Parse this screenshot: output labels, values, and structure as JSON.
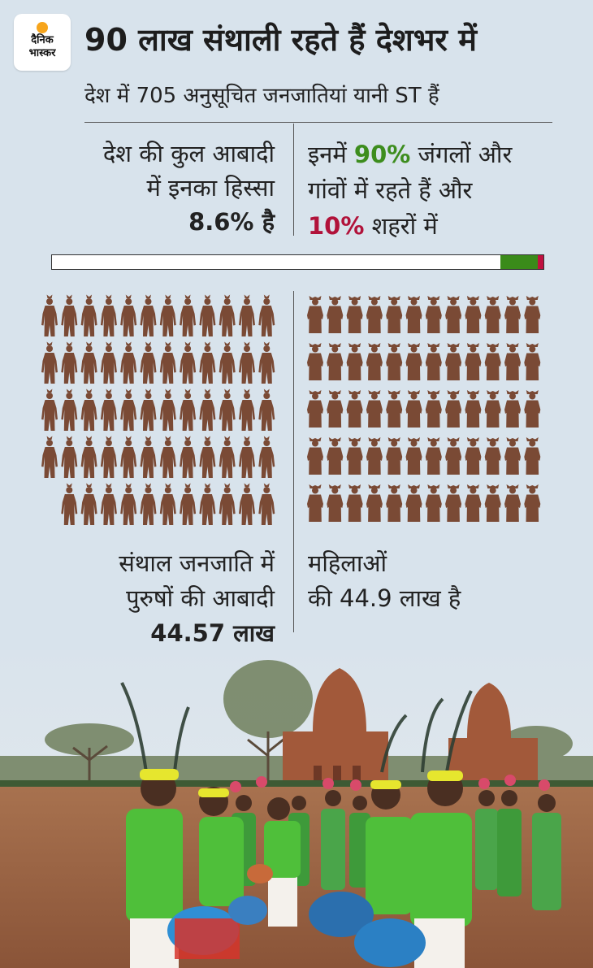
{
  "logo": {
    "line1": "दैनिक",
    "line2": "भास्कर",
    "sun_color": "#f7a51c"
  },
  "title": "90 लाख संथाली रहते हैं देशभर में",
  "subtitle": "देश में 705 अनुसूचित जनजातियां यानी ST हैं",
  "population_share": {
    "line1": "देश की कुल आबादी",
    "line2": "में इनका हिस्सा",
    "value": "8.6% है"
  },
  "settlement": {
    "prefix": "इनमें ",
    "forest_pct": "90%",
    "line1_rest": " जंगलों और",
    "line2": "गांवों में रहते हैं और",
    "urban_pct": "10%",
    "line3_rest": " शहरों में"
  },
  "settlement_bar": {
    "forest_fraction": 0.075,
    "urban_fraction": 0.012,
    "forest_color": "#3a8b1a",
    "urban_color": "#c01040"
  },
  "men": {
    "icon": "man-icon",
    "count": 59,
    "color": "#7a4a35"
  },
  "women": {
    "icon": "woman-icon",
    "count": 61,
    "color": "#7a4a35"
  },
  "men_caption": {
    "line1": "संथाल जनजाति में",
    "line2": "पुरुषों की आबादी",
    "value": "44.57 लाख"
  },
  "women_caption": {
    "line1": "महिलाओं",
    "line2": "की 44.9 लाख है"
  }
}
